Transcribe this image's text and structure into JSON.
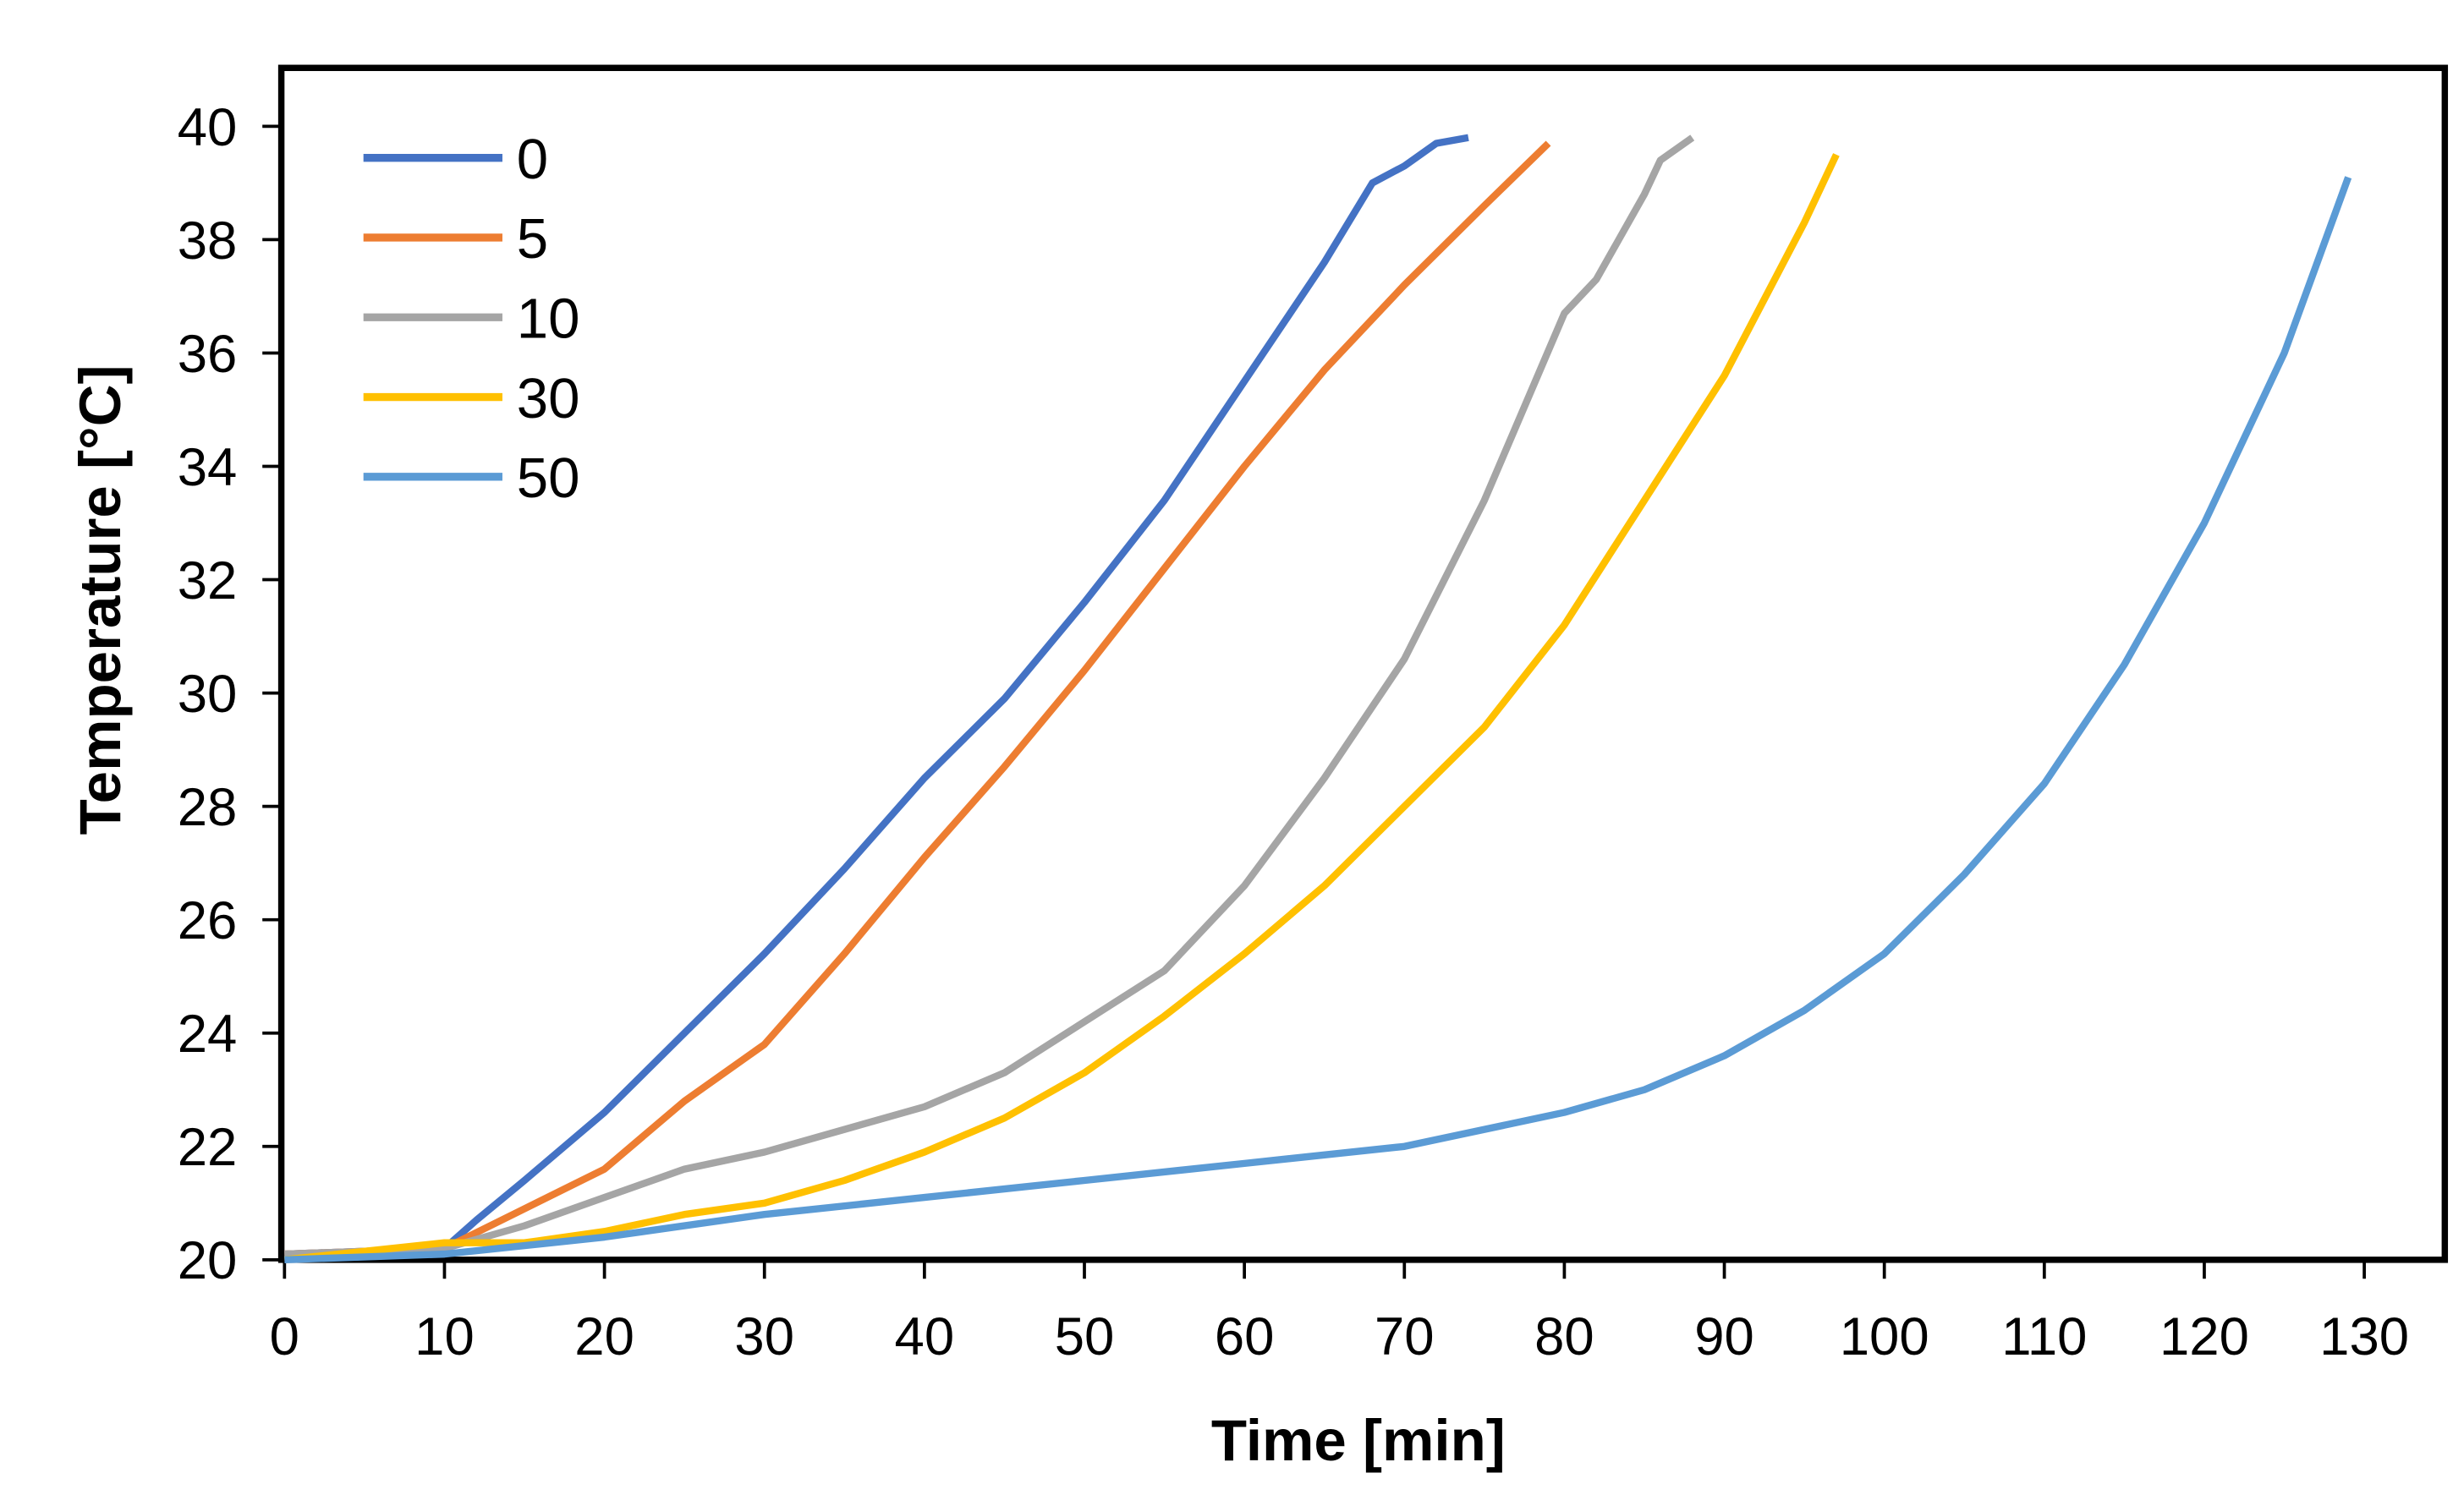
{
  "chart_data": {
    "type": "line",
    "title": "",
    "xlabel": "Time [min]",
    "ylabel": "Temperature [°C]",
    "xlim": [
      0,
      130
    ],
    "ylim": [
      20,
      40
    ],
    "xticks": [
      "0",
      "10",
      "20",
      "30",
      "40",
      "50",
      "60",
      "70",
      "80",
      "90",
      "100",
      "110",
      "120",
      "130"
    ],
    "yticks": [
      "20",
      "22",
      "24",
      "26",
      "28",
      "30",
      "32",
      "34",
      "36",
      "38",
      "40"
    ],
    "grid": false,
    "legend_position": "top-left",
    "series": [
      {
        "name": "0",
        "color": "#4472C4",
        "points": [
          [
            0,
            20.1
          ],
          [
            10,
            20.2
          ],
          [
            12,
            20.7
          ],
          [
            15,
            21.4
          ],
          [
            20,
            22.6
          ],
          [
            25,
            24.0
          ],
          [
            30,
            25.4
          ],
          [
            35,
            26.9
          ],
          [
            40,
            28.5
          ],
          [
            45,
            29.9
          ],
          [
            50,
            31.6
          ],
          [
            55,
            33.4
          ],
          [
            60,
            35.5
          ],
          [
            65,
            37.6
          ],
          [
            68,
            39.0
          ],
          [
            70,
            39.3
          ],
          [
            72,
            39.7
          ],
          [
            74,
            39.8
          ]
        ]
      },
      {
        "name": "5",
        "color": "#ED7D31",
        "points": [
          [
            0,
            20.1
          ],
          [
            10,
            20.2
          ],
          [
            15,
            20.9
          ],
          [
            20,
            21.6
          ],
          [
            25,
            22.8
          ],
          [
            30,
            23.8
          ],
          [
            35,
            25.4
          ],
          [
            40,
            27.1
          ],
          [
            45,
            28.7
          ],
          [
            50,
            30.4
          ],
          [
            55,
            32.2
          ],
          [
            60,
            34.0
          ],
          [
            65,
            35.7
          ],
          [
            70,
            37.2
          ],
          [
            75,
            38.6
          ],
          [
            79,
            39.7
          ]
        ]
      },
      {
        "name": "10",
        "color": "#A5A5A5",
        "points": [
          [
            0,
            20.1
          ],
          [
            10,
            20.2
          ],
          [
            15,
            20.6
          ],
          [
            20,
            21.1
          ],
          [
            25,
            21.6
          ],
          [
            30,
            21.9
          ],
          [
            35,
            22.3
          ],
          [
            40,
            22.7
          ],
          [
            45,
            23.3
          ],
          [
            50,
            24.2
          ],
          [
            55,
            25.1
          ],
          [
            60,
            26.6
          ],
          [
            65,
            28.5
          ],
          [
            70,
            30.6
          ],
          [
            75,
            33.4
          ],
          [
            80,
            36.7
          ],
          [
            82,
            37.3
          ],
          [
            85,
            38.8
          ],
          [
            86,
            39.4
          ],
          [
            88,
            39.8
          ]
        ]
      },
      {
        "name": "30",
        "color": "#FFC000",
        "points": [
          [
            0,
            20.0
          ],
          [
            10,
            20.3
          ],
          [
            15,
            20.3
          ],
          [
            20,
            20.5
          ],
          [
            25,
            20.8
          ],
          [
            30,
            21.0
          ],
          [
            35,
            21.4
          ],
          [
            40,
            21.9
          ],
          [
            45,
            22.5
          ],
          [
            50,
            23.3
          ],
          [
            55,
            24.3
          ],
          [
            60,
            25.4
          ],
          [
            65,
            26.6
          ],
          [
            70,
            28.0
          ],
          [
            75,
            29.4
          ],
          [
            80,
            31.2
          ],
          [
            85,
            33.4
          ],
          [
            90,
            35.6
          ],
          [
            95,
            38.3
          ],
          [
            97,
            39.5
          ]
        ]
      },
      {
        "name": "50",
        "color": "#5B9BD5",
        "points": [
          [
            0,
            20.0
          ],
          [
            10,
            20.1
          ],
          [
            20,
            20.4
          ],
          [
            30,
            20.8
          ],
          [
            40,
            21.1
          ],
          [
            50,
            21.4
          ],
          [
            60,
            21.7
          ],
          [
            70,
            22.0
          ],
          [
            80,
            22.6
          ],
          [
            85,
            23.0
          ],
          [
            90,
            23.6
          ],
          [
            95,
            24.4
          ],
          [
            100,
            25.4
          ],
          [
            105,
            26.8
          ],
          [
            110,
            28.4
          ],
          [
            115,
            30.5
          ],
          [
            120,
            33.0
          ],
          [
            125,
            36.0
          ],
          [
            129,
            39.1
          ]
        ]
      }
    ]
  }
}
